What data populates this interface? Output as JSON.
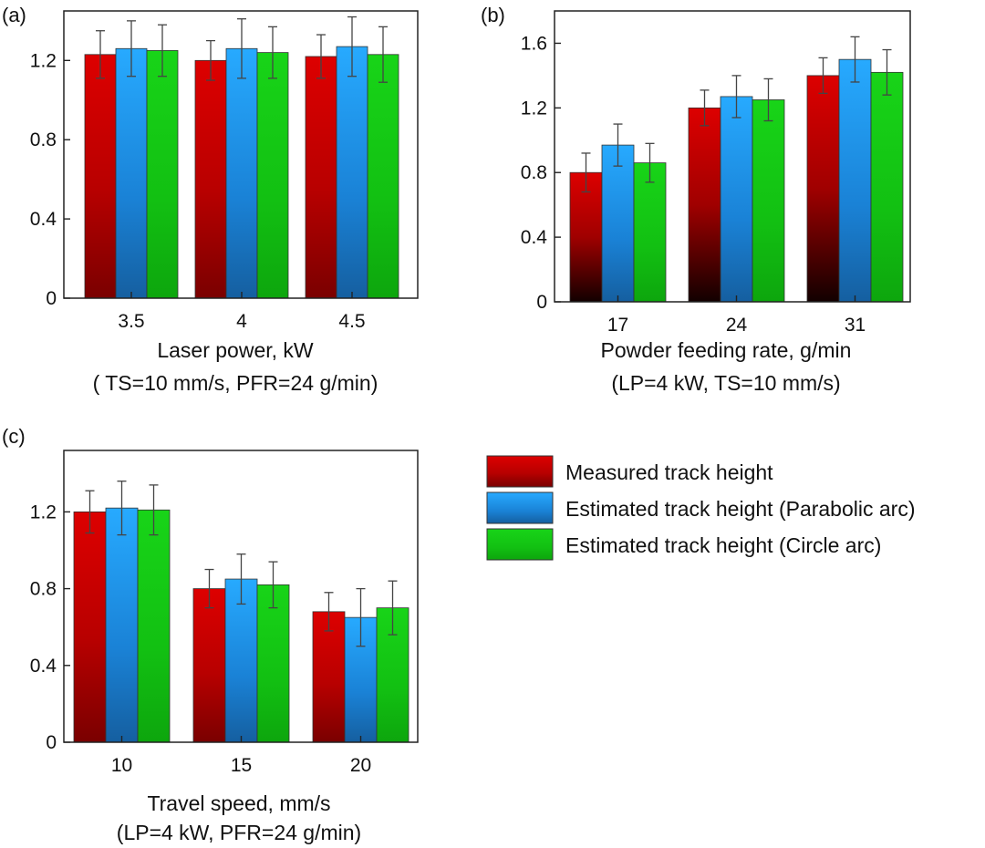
{
  "legend": {
    "entries": [
      {
        "label": "Measured track height",
        "color": "#d10000"
      },
      {
        "label": "Estimated track height (Parabolic arc)",
        "color": "#1aa0ff"
      },
      {
        "label": "Estimated track height (Circle arc)",
        "color": "#11cc11"
      }
    ]
  },
  "chart_data": [
    {
      "type": "bar",
      "panel_label": "(a)",
      "categories": [
        "3.5",
        "4",
        "4.5"
      ],
      "xlabel": "Laser power, kW",
      "xsublabel": "( TS=10 mm/s, PFR=24 g/min)",
      "ylabel": "",
      "ylim": [
        0,
        1.45
      ],
      "yticks": [
        "0",
        "0.4",
        "0.8",
        "1.2"
      ],
      "series": [
        {
          "name": "Measured track height",
          "values": [
            1.23,
            1.2,
            1.22
          ],
          "errors": [
            0.12,
            0.1,
            0.11
          ]
        },
        {
          "name": "Estimated track height (Parabolic arc)",
          "values": [
            1.26,
            1.26,
            1.27
          ],
          "errors": [
            0.14,
            0.15,
            0.15
          ]
        },
        {
          "name": "Estimated track height (Circle arc)",
          "values": [
            1.25,
            1.24,
            1.23
          ],
          "errors": [
            0.13,
            0.13,
            0.14
          ]
        }
      ]
    },
    {
      "type": "bar",
      "panel_label": "(b)",
      "categories": [
        "17",
        "24",
        "31"
      ],
      "xlabel": "Powder feeding rate, g/min",
      "xsublabel": "(LP=4 kW, TS=10 mm/s)",
      "ylabel": "",
      "ylim": [
        0,
        1.8
      ],
      "yticks": [
        "0",
        "0.4",
        "0.8",
        "1.2",
        "1.6"
      ],
      "series": [
        {
          "name": "Measured track height",
          "values": [
            0.8,
            1.2,
            1.4
          ],
          "errors": [
            0.12,
            0.11,
            0.11
          ]
        },
        {
          "name": "Estimated track height (Parabolic arc)",
          "values": [
            0.97,
            1.27,
            1.5
          ],
          "errors": [
            0.13,
            0.13,
            0.14
          ]
        },
        {
          "name": "Estimated track height (Circle arc)",
          "values": [
            0.86,
            1.25,
            1.42
          ],
          "errors": [
            0.12,
            0.13,
            0.14
          ]
        }
      ]
    },
    {
      "type": "bar",
      "panel_label": "(c)",
      "categories": [
        "10",
        "15",
        "20"
      ],
      "xlabel": "Travel speed, mm/s",
      "xsublabel": "(LP=4 kW, PFR=24 g/min)",
      "ylabel": "",
      "ylim": [
        0,
        1.52
      ],
      "yticks": [
        "0",
        "0.4",
        "0.8",
        "1.2"
      ],
      "series": [
        {
          "name": "Measured track height",
          "values": [
            1.2,
            0.8,
            0.68
          ],
          "errors": [
            0.11,
            0.1,
            0.1
          ]
        },
        {
          "name": "Estimated track height (Parabolic arc)",
          "values": [
            1.22,
            0.85,
            0.65
          ],
          "errors": [
            0.14,
            0.13,
            0.15
          ]
        },
        {
          "name": "Estimated track height (Circle arc)",
          "values": [
            1.21,
            0.82,
            0.7
          ],
          "errors": [
            0.13,
            0.12,
            0.14
          ]
        }
      ]
    }
  ]
}
